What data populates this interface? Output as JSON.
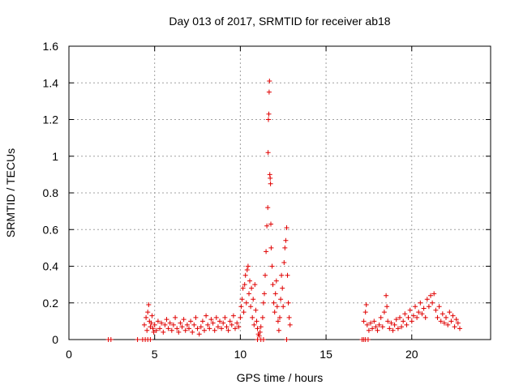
{
  "chart_data": {
    "type": "scatter",
    "title": "Day 013 of 2017, SRMTID for receiver ab18",
    "xlabel": "GPS time / hours",
    "ylabel": "SRMTID / TECUs",
    "xlim": [
      0,
      24.6
    ],
    "ylim": [
      0,
      1.6
    ],
    "xticks": [
      0,
      5,
      10,
      15,
      20
    ],
    "xtick_labels": [
      "0",
      "5",
      "10",
      "15",
      "20"
    ],
    "yticks": [
      0,
      0.2,
      0.4,
      0.6,
      0.8,
      1.0,
      1.2,
      1.4,
      1.6
    ],
    "ytick_labels": [
      "0",
      "0.2",
      "0.4",
      "0.6",
      "0.8",
      "1",
      "1.2",
      "1.4",
      "1.6"
    ],
    "grid": true,
    "legend": "none",
    "marker": "+",
    "colors": {
      "series": "#e00000",
      "grid": "#a0a0a0",
      "axes": "#000000"
    },
    "series": [
      {
        "name": "SRMTID",
        "points": [
          [
            2.3,
            0.0
          ],
          [
            2.45,
            0.0
          ],
          [
            4.0,
            0.0
          ],
          [
            4.3,
            0.0
          ],
          [
            4.45,
            0.0
          ],
          [
            4.6,
            0.0
          ],
          [
            4.75,
            0.0
          ],
          [
            4.4,
            0.08
          ],
          [
            4.5,
            0.12
          ],
          [
            4.55,
            0.05
          ],
          [
            4.6,
            0.15
          ],
          [
            4.65,
            0.19
          ],
          [
            4.7,
            0.1
          ],
          [
            4.75,
            0.07
          ],
          [
            4.8,
            0.09
          ],
          [
            4.85,
            0.13
          ],
          [
            4.9,
            0.06
          ],
          [
            4.95,
            0.04
          ],
          [
            5.0,
            0.08
          ],
          [
            5.1,
            0.05
          ],
          [
            5.2,
            0.1
          ],
          [
            5.3,
            0.06
          ],
          [
            5.4,
            0.09
          ],
          [
            5.5,
            0.04
          ],
          [
            5.6,
            0.08
          ],
          [
            5.7,
            0.11
          ],
          [
            5.8,
            0.06
          ],
          [
            5.9,
            0.09
          ],
          [
            6.0,
            0.05
          ],
          [
            6.1,
            0.08
          ],
          [
            6.2,
            0.12
          ],
          [
            6.3,
            0.06
          ],
          [
            6.4,
            0.04
          ],
          [
            6.5,
            0.09
          ],
          [
            6.6,
            0.07
          ],
          [
            6.7,
            0.11
          ],
          [
            6.8,
            0.05
          ],
          [
            6.9,
            0.08
          ],
          [
            7.0,
            0.06
          ],
          [
            7.1,
            0.1
          ],
          [
            7.2,
            0.04
          ],
          [
            7.3,
            0.08
          ],
          [
            7.4,
            0.12
          ],
          [
            7.5,
            0.06
          ],
          [
            7.6,
            0.03
          ],
          [
            7.7,
            0.07
          ],
          [
            7.8,
            0.1
          ],
          [
            7.9,
            0.05
          ],
          [
            8.0,
            0.13
          ],
          [
            8.1,
            0.08
          ],
          [
            8.2,
            0.06
          ],
          [
            8.3,
            0.11
          ],
          [
            8.4,
            0.09
          ],
          [
            8.5,
            0.05
          ],
          [
            8.6,
            0.12
          ],
          [
            8.7,
            0.07
          ],
          [
            8.8,
            0.1
          ],
          [
            8.9,
            0.06
          ],
          [
            9.0,
            0.09
          ],
          [
            9.1,
            0.12
          ],
          [
            9.2,
            0.07
          ],
          [
            9.3,
            0.05
          ],
          [
            9.4,
            0.1
          ],
          [
            9.5,
            0.08
          ],
          [
            9.6,
            0.13
          ],
          [
            9.7,
            0.06
          ],
          [
            9.8,
            0.09
          ],
          [
            9.9,
            0.07
          ],
          [
            10.0,
            0.12
          ],
          [
            10.05,
            0.18
          ],
          [
            10.1,
            0.22
          ],
          [
            10.15,
            0.28
          ],
          [
            10.2,
            0.15
          ],
          [
            10.25,
            0.3
          ],
          [
            10.3,
            0.35
          ],
          [
            10.35,
            0.2
          ],
          [
            10.4,
            0.38
          ],
          [
            10.45,
            0.4
          ],
          [
            10.5,
            0.25
          ],
          [
            10.55,
            0.32
          ],
          [
            10.6,
            0.18
          ],
          [
            10.65,
            0.28
          ],
          [
            10.7,
            0.12
          ],
          [
            10.75,
            0.22
          ],
          [
            10.8,
            0.08
          ],
          [
            10.85,
            0.3
          ],
          [
            10.9,
            0.16
          ],
          [
            10.95,
            0.1
          ],
          [
            11.0,
            0.06
          ],
          [
            11.05,
            0.03
          ],
          [
            11.1,
            0.02
          ],
          [
            11.15,
            0.04
          ],
          [
            11.2,
            0.07
          ],
          [
            11.0,
            0.0
          ],
          [
            11.2,
            0.0
          ],
          [
            11.35,
            0.0
          ],
          [
            11.3,
            0.12
          ],
          [
            11.35,
            0.2
          ],
          [
            11.4,
            0.25
          ],
          [
            11.45,
            0.35
          ],
          [
            11.5,
            0.48
          ],
          [
            11.55,
            0.62
          ],
          [
            11.6,
            0.72
          ],
          [
            11.62,
            1.02
          ],
          [
            11.64,
            1.2
          ],
          [
            11.66,
            1.23
          ],
          [
            11.68,
            1.35
          ],
          [
            11.7,
            1.41
          ],
          [
            11.72,
            0.9
          ],
          [
            11.74,
            0.88
          ],
          [
            11.76,
            0.85
          ],
          [
            11.78,
            0.63
          ],
          [
            11.8,
            0.5
          ],
          [
            11.85,
            0.4
          ],
          [
            11.9,
            0.3
          ],
          [
            11.95,
            0.2
          ],
          [
            12.0,
            0.15
          ],
          [
            12.05,
            0.25
          ],
          [
            12.1,
            0.32
          ],
          [
            12.15,
            0.18
          ],
          [
            12.2,
            0.1
          ],
          [
            12.25,
            0.05
          ],
          [
            12.3,
            0.12
          ],
          [
            12.35,
            0.22
          ],
          [
            12.4,
            0.35
          ],
          [
            12.45,
            0.28
          ],
          [
            12.5,
            0.18
          ],
          [
            12.55,
            0.42
          ],
          [
            12.6,
            0.5
          ],
          [
            12.65,
            0.54
          ],
          [
            12.7,
            0.61
          ],
          [
            12.75,
            0.35
          ],
          [
            12.8,
            0.2
          ],
          [
            12.85,
            0.12
          ],
          [
            12.9,
            0.08
          ],
          [
            12.7,
            0.0
          ],
          [
            17.1,
            0.0
          ],
          [
            17.2,
            0.0
          ],
          [
            17.3,
            0.0
          ],
          [
            17.45,
            0.0
          ],
          [
            17.2,
            0.1
          ],
          [
            17.3,
            0.15
          ],
          [
            17.35,
            0.19
          ],
          [
            17.4,
            0.08
          ],
          [
            17.5,
            0.05
          ],
          [
            17.6,
            0.09
          ],
          [
            17.7,
            0.06
          ],
          [
            17.8,
            0.1
          ],
          [
            17.9,
            0.07
          ],
          [
            18.0,
            0.05
          ],
          [
            18.1,
            0.08
          ],
          [
            18.2,
            0.12
          ],
          [
            18.3,
            0.07
          ],
          [
            18.4,
            0.15
          ],
          [
            18.5,
            0.24
          ],
          [
            18.55,
            0.18
          ],
          [
            18.6,
            0.1
          ],
          [
            18.7,
            0.06
          ],
          [
            18.8,
            0.09
          ],
          [
            18.9,
            0.05
          ],
          [
            19.0,
            0.08
          ],
          [
            19.1,
            0.11
          ],
          [
            19.2,
            0.06
          ],
          [
            19.3,
            0.12
          ],
          [
            19.4,
            0.07
          ],
          [
            19.5,
            0.1
          ],
          [
            19.6,
            0.14
          ],
          [
            19.7,
            0.08
          ],
          [
            19.8,
            0.12
          ],
          [
            19.9,
            0.16
          ],
          [
            20.0,
            0.1
          ],
          [
            20.1,
            0.13
          ],
          [
            20.2,
            0.18
          ],
          [
            20.3,
            0.12
          ],
          [
            20.4,
            0.15
          ],
          [
            20.5,
            0.2
          ],
          [
            20.6,
            0.14
          ],
          [
            20.7,
            0.17
          ],
          [
            20.8,
            0.12
          ],
          [
            20.9,
            0.22
          ],
          [
            21.0,
            0.18
          ],
          [
            21.1,
            0.24
          ],
          [
            21.2,
            0.2
          ],
          [
            21.3,
            0.25
          ],
          [
            21.4,
            0.16
          ],
          [
            21.5,
            0.12
          ],
          [
            21.6,
            0.18
          ],
          [
            21.7,
            0.1
          ],
          [
            21.8,
            0.14
          ],
          [
            21.9,
            0.09
          ],
          [
            22.0,
            0.12
          ],
          [
            22.1,
            0.08
          ],
          [
            22.2,
            0.15
          ],
          [
            22.3,
            0.1
          ],
          [
            22.4,
            0.13
          ],
          [
            22.5,
            0.07
          ],
          [
            22.6,
            0.11
          ],
          [
            22.7,
            0.09
          ],
          [
            22.8,
            0.06
          ]
        ]
      }
    ]
  }
}
